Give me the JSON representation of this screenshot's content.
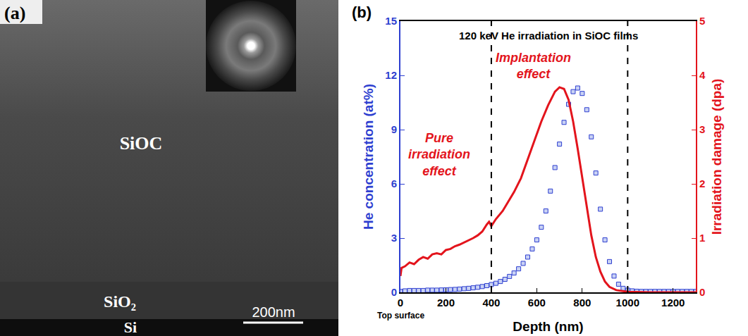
{
  "panel_a": {
    "label": "(a)",
    "layers": [
      "SiOC",
      "SiO₂",
      "Si"
    ],
    "scale_bar": "200nm"
  },
  "chart_data": {
    "type": "scatter",
    "panel_label": "(b)",
    "title": "120 keV He irradiation in SiOC films",
    "x_label": "Depth (nm)",
    "y_label": "He concentration (at%)",
    "y2_label": "Irradiation damage (dpa)",
    "xlim": [
      0,
      1300
    ],
    "xticks": [
      0,
      200,
      400,
      600,
      800,
      1000,
      1200
    ],
    "ylim": [
      0,
      15
    ],
    "yticks": [
      0,
      3,
      6,
      9,
      12,
      15
    ],
    "y2lim": [
      0,
      5
    ],
    "y2ticks": [
      0,
      1,
      2,
      3,
      4,
      5
    ],
    "grid": false,
    "annotations": [
      "Pure irradiation effect",
      "Implantation effect",
      "Top surface"
    ],
    "reference_lines": {
      "x": [
        400,
        1000
      ],
      "line_style": "dashed"
    },
    "series": [
      {
        "type": "scatter",
        "marker": "square",
        "color": "#2e3fd0",
        "x": [
          0,
          20,
          40,
          60,
          80,
          100,
          120,
          140,
          160,
          180,
          200,
          220,
          240,
          260,
          280,
          300,
          320,
          340,
          360,
          380,
          400,
          420,
          440,
          460,
          480,
          500,
          520,
          540,
          560,
          580,
          600,
          620,
          640,
          660,
          680,
          700,
          720,
          740,
          760,
          780,
          800,
          820,
          840,
          860,
          880,
          900,
          920,
          940,
          960,
          980,
          1000,
          1020,
          1040,
          1060,
          1080,
          1100,
          1120,
          1140,
          1160,
          1180,
          1200,
          1220,
          1240,
          1260,
          1280,
          1300
        ],
        "values": [
          0.05,
          0.08,
          0.1,
          0.1,
          0.1,
          0.1,
          0.12,
          0.12,
          0.12,
          0.13,
          0.14,
          0.15,
          0.16,
          0.18,
          0.2,
          0.22,
          0.25,
          0.28,
          0.32,
          0.37,
          0.43,
          0.5,
          0.6,
          0.72,
          0.88,
          1.07,
          1.3,
          1.6,
          1.95,
          2.4,
          2.9,
          3.6,
          4.5,
          5.6,
          6.9,
          8.2,
          9.4,
          10.4,
          11.1,
          11.3,
          11.0,
          10.1,
          8.6,
          6.6,
          4.6,
          2.9,
          1.7,
          0.9,
          0.45,
          0.22,
          0.12,
          0.08,
          0.06,
          0.05,
          0.05,
          0.05,
          0.05,
          0.05,
          0.05,
          0.05,
          0.05,
          0.05,
          0.05,
          0.05,
          0.05,
          0.05
        ]
      },
      {
        "type": "line",
        "line_style": "solid",
        "axis": "y2",
        "color": "#e3141c",
        "x": [
          0,
          5,
          20,
          40,
          60,
          80,
          100,
          120,
          140,
          160,
          180,
          200,
          220,
          240,
          260,
          280,
          300,
          320,
          340,
          360,
          380,
          390,
          400,
          420,
          450,
          480,
          500,
          530,
          560,
          590,
          620,
          650,
          680,
          700,
          720,
          740,
          760,
          780,
          800,
          820,
          840,
          860,
          880,
          900,
          920,
          950,
          1000,
          1100,
          1300
        ],
        "values": [
          0.3,
          0.45,
          0.48,
          0.55,
          0.52,
          0.6,
          0.65,
          0.62,
          0.7,
          0.72,
          0.7,
          0.78,
          0.8,
          0.85,
          0.88,
          0.92,
          0.95,
          1.0,
          1.05,
          1.12,
          1.25,
          1.3,
          1.22,
          1.35,
          1.5,
          1.7,
          1.85,
          2.1,
          2.45,
          2.8,
          3.15,
          3.45,
          3.7,
          3.78,
          3.75,
          3.55,
          3.15,
          2.65,
          2.1,
          1.55,
          1.05,
          0.65,
          0.38,
          0.2,
          0.1,
          0.04,
          0.01,
          0,
          0
        ]
      }
    ]
  }
}
